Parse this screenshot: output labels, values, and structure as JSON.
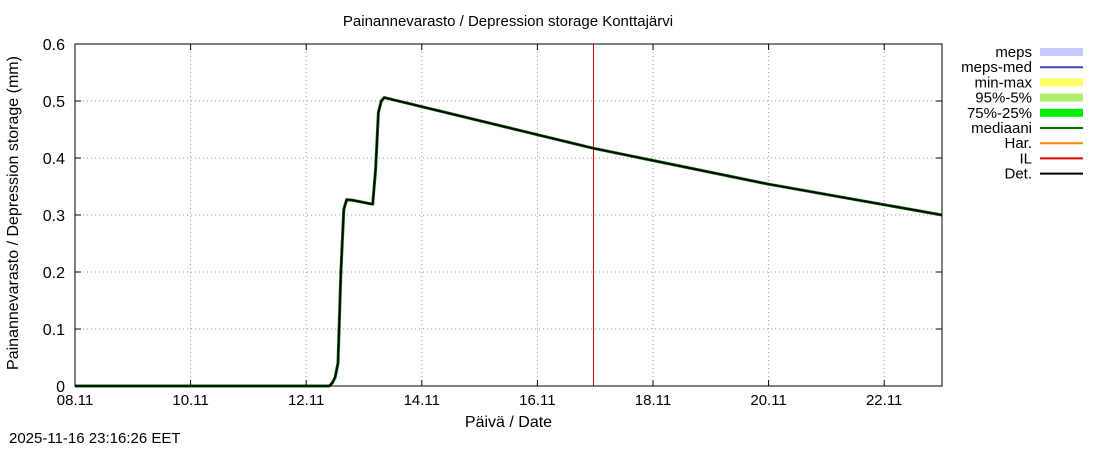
{
  "timestamp": "2025-11-16 23:16:26 EET",
  "chart_data": {
    "type": "line",
    "title": "Painannevarasto / Depression storage",
    "location": "Konttajärvi",
    "xlabel": "Päivä / Date",
    "ylabel": "Painannevarasto / Depression storage (mm)",
    "x_range_days": [
      0,
      15
    ],
    "ylim": [
      0,
      0.6
    ],
    "grid": true,
    "legend_placement": "right",
    "x_ticks": [
      {
        "day": 0,
        "label": "08.11"
      },
      {
        "day": 2,
        "label": "10.11"
      },
      {
        "day": 4,
        "label": "12.11"
      },
      {
        "day": 6,
        "label": "14.11"
      },
      {
        "day": 8,
        "label": "16.11"
      },
      {
        "day": 10,
        "label": "18.11"
      },
      {
        "day": 12,
        "label": "20.11"
      },
      {
        "day": 14,
        "label": "22.11"
      }
    ],
    "y_ticks": [
      0,
      0.1,
      0.2,
      0.3,
      0.4,
      0.5,
      0.6
    ],
    "y_tick_labels": [
      "0",
      "0.1",
      "0.2",
      "0.3",
      "0.4",
      "0.5",
      "0.6"
    ],
    "vertical_marker_day": 8.97,
    "legend": [
      {
        "name": "meps",
        "color": "#c8c8ff",
        "style": "band"
      },
      {
        "name": "meps-med",
        "color": "#4444bb",
        "style": "line"
      },
      {
        "name": "min-max",
        "color": "#ffff66",
        "style": "band"
      },
      {
        "name": "95%-5%",
        "color": "#b0f070",
        "style": "band"
      },
      {
        "name": "75%-25%",
        "color": "#00ee00",
        "style": "band"
      },
      {
        "name": "mediaani",
        "color": "#007700",
        "style": "line"
      },
      {
        "name": "Har.",
        "color": "#ff8800",
        "style": "line"
      },
      {
        "name": "IL",
        "color": "#dd0000",
        "style": "line"
      },
      {
        "name": "Det.",
        "color": "#000000",
        "style": "line"
      }
    ],
    "series": [
      {
        "name": "Det.",
        "color": "#000000",
        "points": [
          [
            0,
            0
          ],
          [
            4.4,
            0
          ],
          [
            4.45,
            0.005
          ],
          [
            4.5,
            0.015
          ],
          [
            4.55,
            0.04
          ],
          [
            4.6,
            0.2
          ],
          [
            4.65,
            0.31
          ],
          [
            4.7,
            0.327
          ],
          [
            4.8,
            0.326
          ],
          [
            5.0,
            0.322
          ],
          [
            5.15,
            0.319
          ],
          [
            5.2,
            0.38
          ],
          [
            5.25,
            0.48
          ],
          [
            5.3,
            0.5
          ],
          [
            5.35,
            0.506
          ],
          [
            6.0,
            0.49
          ],
          [
            8.97,
            0.417
          ],
          [
            12.0,
            0.354
          ],
          [
            15.0,
            0.3
          ]
        ]
      }
    ]
  }
}
